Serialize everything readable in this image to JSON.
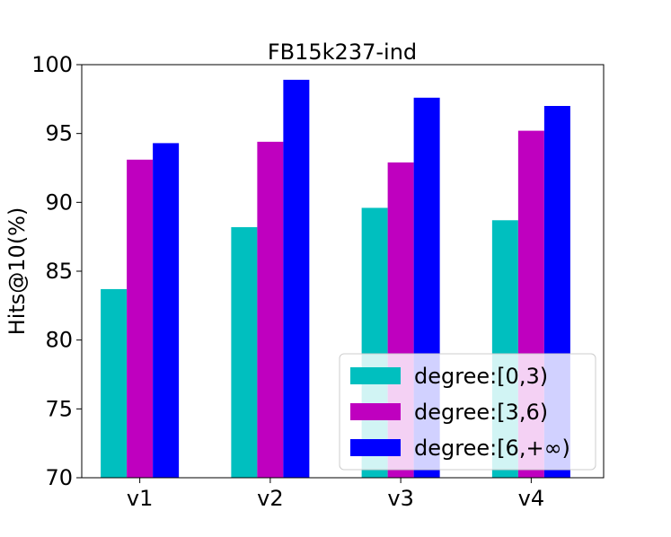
{
  "chart_data": {
    "type": "bar",
    "title": "FB15k237-ind",
    "xlabel": "",
    "ylabel": "Hits@10(%)",
    "ylim": [
      70,
      100
    ],
    "yticks": [
      70,
      75,
      80,
      85,
      90,
      95,
      100
    ],
    "categories": [
      "v1",
      "v2",
      "v3",
      "v4"
    ],
    "series": [
      {
        "name": "degree:[0,3)",
        "color": "#00bfbf",
        "values": [
          83.7,
          88.2,
          89.6,
          88.7
        ]
      },
      {
        "name": "degree:[3,6)",
        "color": "#bf00bf",
        "values": [
          93.1,
          94.4,
          92.9,
          95.2
        ]
      },
      {
        "name": "degree:[6,+∞)",
        "color": "#0000ff",
        "values": [
          94.3,
          98.9,
          97.6,
          97.0
        ]
      }
    ],
    "legend": {
      "placement": "lower-right"
    },
    "grid": false
  }
}
